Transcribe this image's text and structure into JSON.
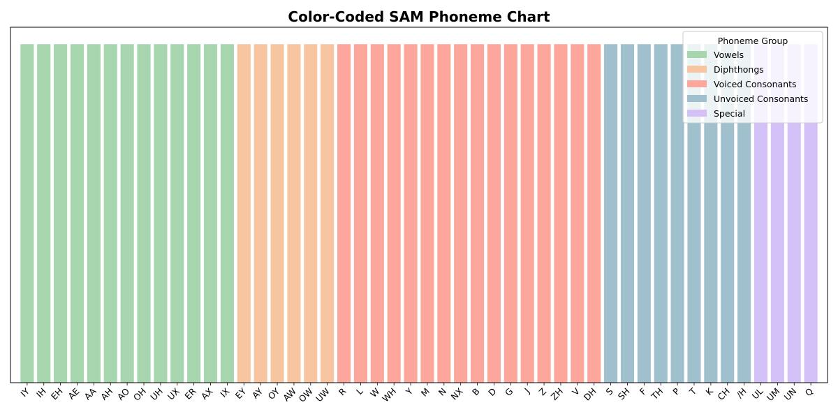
{
  "chart_data": {
    "type": "bar",
    "title": "Color-Coded SAM Phoneme Chart",
    "xlabel": "",
    "ylabel": "",
    "ylim": [
      0,
      1.05
    ],
    "grid": false,
    "y_ticks_visible": false,
    "legend": {
      "title": "Phoneme Group",
      "position": "top-right",
      "entries": [
        "Vowels",
        "Diphthongs",
        "Voiced Consonants",
        "Unvoiced Consonants",
        "Special"
      ]
    },
    "group_colors": {
      "Vowels": "#a6d5ae",
      "Diphthongs": "#f7c59f",
      "Voiced Consonants": "#fca69c",
      "Unvoiced Consonants": "#a0c0cd",
      "Special": "#d2c0f7"
    },
    "categories": [
      "IY",
      "IH",
      "EH",
      "AE",
      "AA",
      "AH",
      "AO",
      "OH",
      "UH",
      "UX",
      "ER",
      "AX",
      "IX",
      "EY",
      "AY",
      "OY",
      "AW",
      "OW",
      "UW",
      "R",
      "L",
      "W",
      "WH",
      "Y",
      "M",
      "N",
      "NX",
      "B",
      "D",
      "G",
      "J",
      "Z",
      "ZH",
      "V",
      "DH",
      "S",
      "SH",
      "F",
      "TH",
      "P",
      "T",
      "K",
      "CH",
      "/H",
      "UL",
      "UM",
      "UN",
      "Q"
    ],
    "groups": [
      "Vowels",
      "Vowels",
      "Vowels",
      "Vowels",
      "Vowels",
      "Vowels",
      "Vowels",
      "Vowels",
      "Vowels",
      "Vowels",
      "Vowels",
      "Vowels",
      "Vowels",
      "Diphthongs",
      "Diphthongs",
      "Diphthongs",
      "Diphthongs",
      "Diphthongs",
      "Diphthongs",
      "Voiced Consonants",
      "Voiced Consonants",
      "Voiced Consonants",
      "Voiced Consonants",
      "Voiced Consonants",
      "Voiced Consonants",
      "Voiced Consonants",
      "Voiced Consonants",
      "Voiced Consonants",
      "Voiced Consonants",
      "Voiced Consonants",
      "Voiced Consonants",
      "Voiced Consonants",
      "Voiced Consonants",
      "Voiced Consonants",
      "Voiced Consonants",
      "Unvoiced Consonants",
      "Unvoiced Consonants",
      "Unvoiced Consonants",
      "Unvoiced Consonants",
      "Unvoiced Consonants",
      "Unvoiced Consonants",
      "Unvoiced Consonants",
      "Unvoiced Consonants",
      "Unvoiced Consonants",
      "Special",
      "Special",
      "Special",
      "Special"
    ],
    "values": [
      1,
      1,
      1,
      1,
      1,
      1,
      1,
      1,
      1,
      1,
      1,
      1,
      1,
      1,
      1,
      1,
      1,
      1,
      1,
      1,
      1,
      1,
      1,
      1,
      1,
      1,
      1,
      1,
      1,
      1,
      1,
      1,
      1,
      1,
      1,
      1,
      1,
      1,
      1,
      1,
      1,
      1,
      1,
      1,
      1,
      1,
      1,
      1
    ]
  }
}
